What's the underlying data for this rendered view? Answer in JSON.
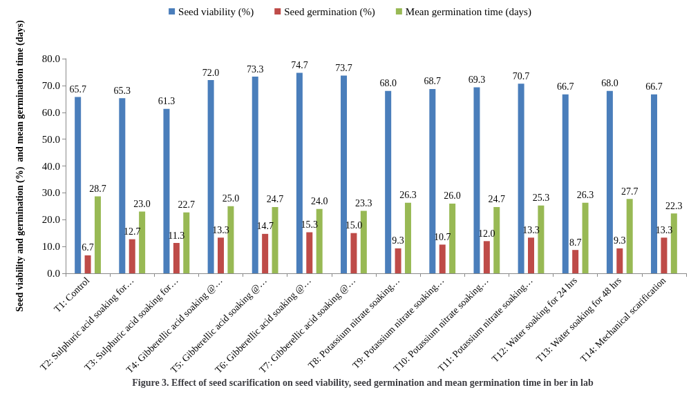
{
  "chart_data": {
    "type": "bar",
    "title": "Figure 3. Effect of seed scarification on seed viability, seed germination and mean germination time in ber in lab",
    "ylabel": "Seed viability and germination (%)  and mean germination time (days)",
    "categories": [
      "T1: Control",
      "T2: Sulphuric acid soaking for…",
      "T3: Sulphuric acid soaking for…",
      "T4: Gibberellic acid soaking @…",
      "T5: Gibberellic acid soaking @…",
      "T6: Gibberellic acid soaking @…",
      "T7: Gibberellic acid soaking @…",
      "T8: Potassium nitrate soaking…",
      "T9: Potassium nitrate soaking…",
      "T10: Potassium nitrate soaking…",
      "T11: Potassium nitrate soaking…",
      "T12: Water soaking for 24 hrs",
      "T13: Water soaking for 48 hrs",
      "T14: Mechanical scarification"
    ],
    "series": [
      {
        "name": "Seed viability (%)",
        "color": "#4a7ebb",
        "values": [
          65.7,
          65.3,
          61.3,
          72.0,
          73.3,
          74.7,
          73.7,
          68.0,
          68.7,
          69.3,
          70.7,
          66.7,
          68.0,
          66.7
        ],
        "value_labels": [
          "65.7",
          "65.3",
          "61.3",
          "72.0",
          "73.3",
          "74.7",
          "73.7",
          "68.0",
          "68.7",
          "69.3",
          "70.7",
          "66.7",
          "68.0",
          "66.7"
        ]
      },
      {
        "name": "Seed germination (%)",
        "color": "#be4b48",
        "values": [
          6.7,
          12.7,
          11.3,
          13.3,
          14.7,
          15.3,
          15.0,
          9.3,
          10.7,
          12.0,
          13.3,
          8.7,
          9.3,
          13.3
        ],
        "value_labels": [
          "6.7",
          "12.7",
          "11.3",
          "13.3",
          "14.7",
          "15.3",
          "15.0",
          "9.3",
          "10.7",
          "12.0",
          "13.3",
          "8.7",
          "9.3",
          "13.3"
        ]
      },
      {
        "name": "Mean germination time (days)",
        "color": "#98b954",
        "values": [
          28.7,
          23.0,
          22.7,
          25.0,
          24.7,
          24.0,
          23.3,
          26.3,
          26.0,
          24.7,
          25.3,
          26.3,
          27.7,
          22.3
        ],
        "value_labels": [
          "28.7",
          "23.0",
          "22.7",
          "25.0",
          "24.7",
          "24.0",
          "23.3",
          "26.3",
          "26.0",
          "24.7",
          "25.3",
          "26.3",
          "27.7",
          "22.3"
        ]
      }
    ],
    "ylim": [
      0,
      80
    ],
    "yticks": [
      {
        "value": 0,
        "label": "0.0"
      },
      {
        "value": 10,
        "label": "10.0"
      },
      {
        "value": 20,
        "label": "20.0"
      },
      {
        "value": 30,
        "label": "30.0"
      },
      {
        "value": 40,
        "label": "40.0"
      },
      {
        "value": 50,
        "label": "50.0"
      },
      {
        "value": 60,
        "label": "60.0"
      },
      {
        "value": 70,
        "label": "70.0"
      },
      {
        "value": 80,
        "label": "80.0"
      }
    ],
    "grid": false,
    "legend": "top"
  }
}
